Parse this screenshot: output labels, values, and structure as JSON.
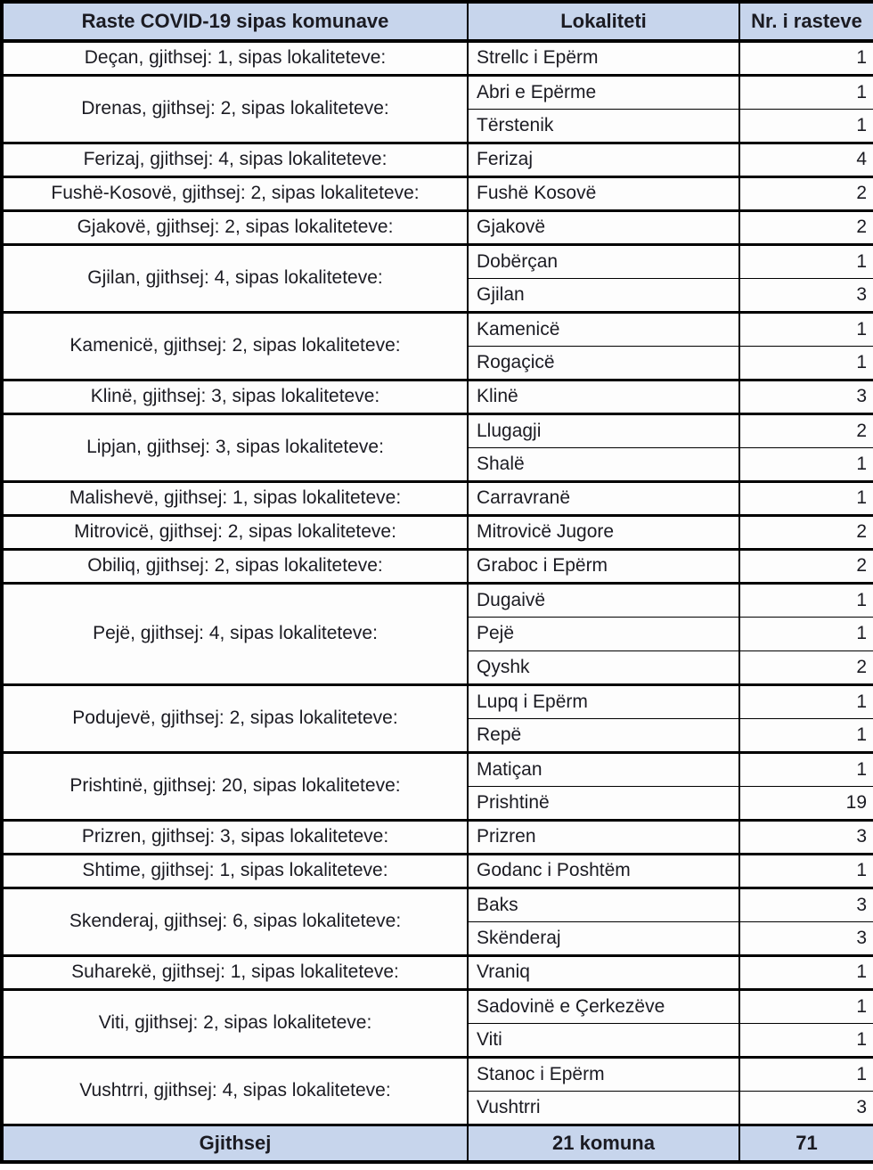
{
  "header": {
    "municipality_col": "Raste COVID-19 sipas komunave",
    "locality_col": "Lokaliteti",
    "cases_col": "Nr. i rasteve"
  },
  "municipalities": [
    {
      "label": "Deçan, gjithsej: 1, sipas lokaliteteve:",
      "localities": [
        {
          "name": "Strellc i Epërm",
          "cases": "1"
        }
      ]
    },
    {
      "label": "Drenas, gjithsej: 2, sipas lokaliteteve:",
      "localities": [
        {
          "name": "Abri e Epërme",
          "cases": "1"
        },
        {
          "name": "Tërstenik",
          "cases": "1"
        }
      ]
    },
    {
      "label": "Ferizaj, gjithsej: 4, sipas lokaliteteve:",
      "localities": [
        {
          "name": "Ferizaj",
          "cases": "4"
        }
      ]
    },
    {
      "label": "Fushë-Kosovë, gjithsej: 2, sipas lokaliteteve:",
      "localities": [
        {
          "name": "Fushë Kosovë",
          "cases": "2"
        }
      ]
    },
    {
      "label": "Gjakovë, gjithsej: 2, sipas lokaliteteve:",
      "localities": [
        {
          "name": "Gjakovë",
          "cases": "2"
        }
      ]
    },
    {
      "label": "Gjilan, gjithsej: 4, sipas lokaliteteve:",
      "localities": [
        {
          "name": "Dobërçan",
          "cases": "1"
        },
        {
          "name": "Gjilan",
          "cases": "3"
        }
      ]
    },
    {
      "label": "Kamenicë, gjithsej: 2, sipas lokaliteteve:",
      "localities": [
        {
          "name": "Kamenicë",
          "cases": "1"
        },
        {
          "name": "Rogaçicë",
          "cases": "1"
        }
      ]
    },
    {
      "label": "Klinë, gjithsej: 3, sipas lokaliteteve:",
      "localities": [
        {
          "name": "Klinë",
          "cases": "3"
        }
      ]
    },
    {
      "label": "Lipjan, gjithsej: 3, sipas lokaliteteve:",
      "localities": [
        {
          "name": "Llugagji",
          "cases": "2"
        },
        {
          "name": "Shalë",
          "cases": "1"
        }
      ]
    },
    {
      "label": "Malishevë, gjithsej: 1, sipas lokaliteteve:",
      "localities": [
        {
          "name": "Carravranë",
          "cases": "1"
        }
      ]
    },
    {
      "label": "Mitrovicë, gjithsej: 2, sipas lokaliteteve:",
      "localities": [
        {
          "name": "Mitrovicë Jugore",
          "cases": "2"
        }
      ]
    },
    {
      "label": "Obiliq, gjithsej: 2, sipas lokaliteteve:",
      "localities": [
        {
          "name": "Graboc i Epërm",
          "cases": "2"
        }
      ]
    },
    {
      "label": "Pejë, gjithsej: 4, sipas lokaliteteve:",
      "localities": [
        {
          "name": "Dugaivë",
          "cases": "1"
        },
        {
          "name": "Pejë",
          "cases": "1"
        },
        {
          "name": "Qyshk",
          "cases": "2"
        }
      ]
    },
    {
      "label": "Podujevë, gjithsej: 2, sipas lokaliteteve:",
      "localities": [
        {
          "name": "Lupq i Epërm",
          "cases": "1"
        },
        {
          "name": "Repë",
          "cases": "1"
        }
      ]
    },
    {
      "label": "Prishtinë, gjithsej: 20, sipas lokaliteteve:",
      "localities": [
        {
          "name": "Matiçan",
          "cases": "1"
        },
        {
          "name": "Prishtinë",
          "cases": "19"
        }
      ]
    },
    {
      "label": "Prizren, gjithsej: 3, sipas lokaliteteve:",
      "localities": [
        {
          "name": "Prizren",
          "cases": "3"
        }
      ]
    },
    {
      "label": "Shtime, gjithsej: 1, sipas lokaliteteve:",
      "localities": [
        {
          "name": "Godanc i Poshtëm",
          "cases": "1"
        }
      ]
    },
    {
      "label": "Skenderaj, gjithsej: 6, sipas lokaliteteve:",
      "localities": [
        {
          "name": "Baks",
          "cases": "3"
        },
        {
          "name": "Skënderaj",
          "cases": "3"
        }
      ]
    },
    {
      "label": "Suharekë, gjithsej: 1, sipas lokaliteteve:",
      "localities": [
        {
          "name": "Vraniq",
          "cases": "1"
        }
      ]
    },
    {
      "label": "Viti, gjithsej: 2, sipas lokaliteteve:",
      "localities": [
        {
          "name": "Sadovinë e Çerkezëve",
          "cases": "1"
        },
        {
          "name": "Viti",
          "cases": "1"
        }
      ]
    },
    {
      "label": "Vushtrri, gjithsej: 4, sipas lokaliteteve:",
      "localities": [
        {
          "name": "Stanoc i Epërm",
          "cases": "1"
        },
        {
          "name": "Vushtrri",
          "cases": "3"
        }
      ]
    }
  ],
  "footer": {
    "total_label": "Gjithsej",
    "municipality_count": "21 komuna",
    "total_cases": "71"
  },
  "colors": {
    "band_bg": "#c7d5ec",
    "cell_bg": "#fdfdfd",
    "text": "#1b1b22",
    "border": "#000000"
  }
}
